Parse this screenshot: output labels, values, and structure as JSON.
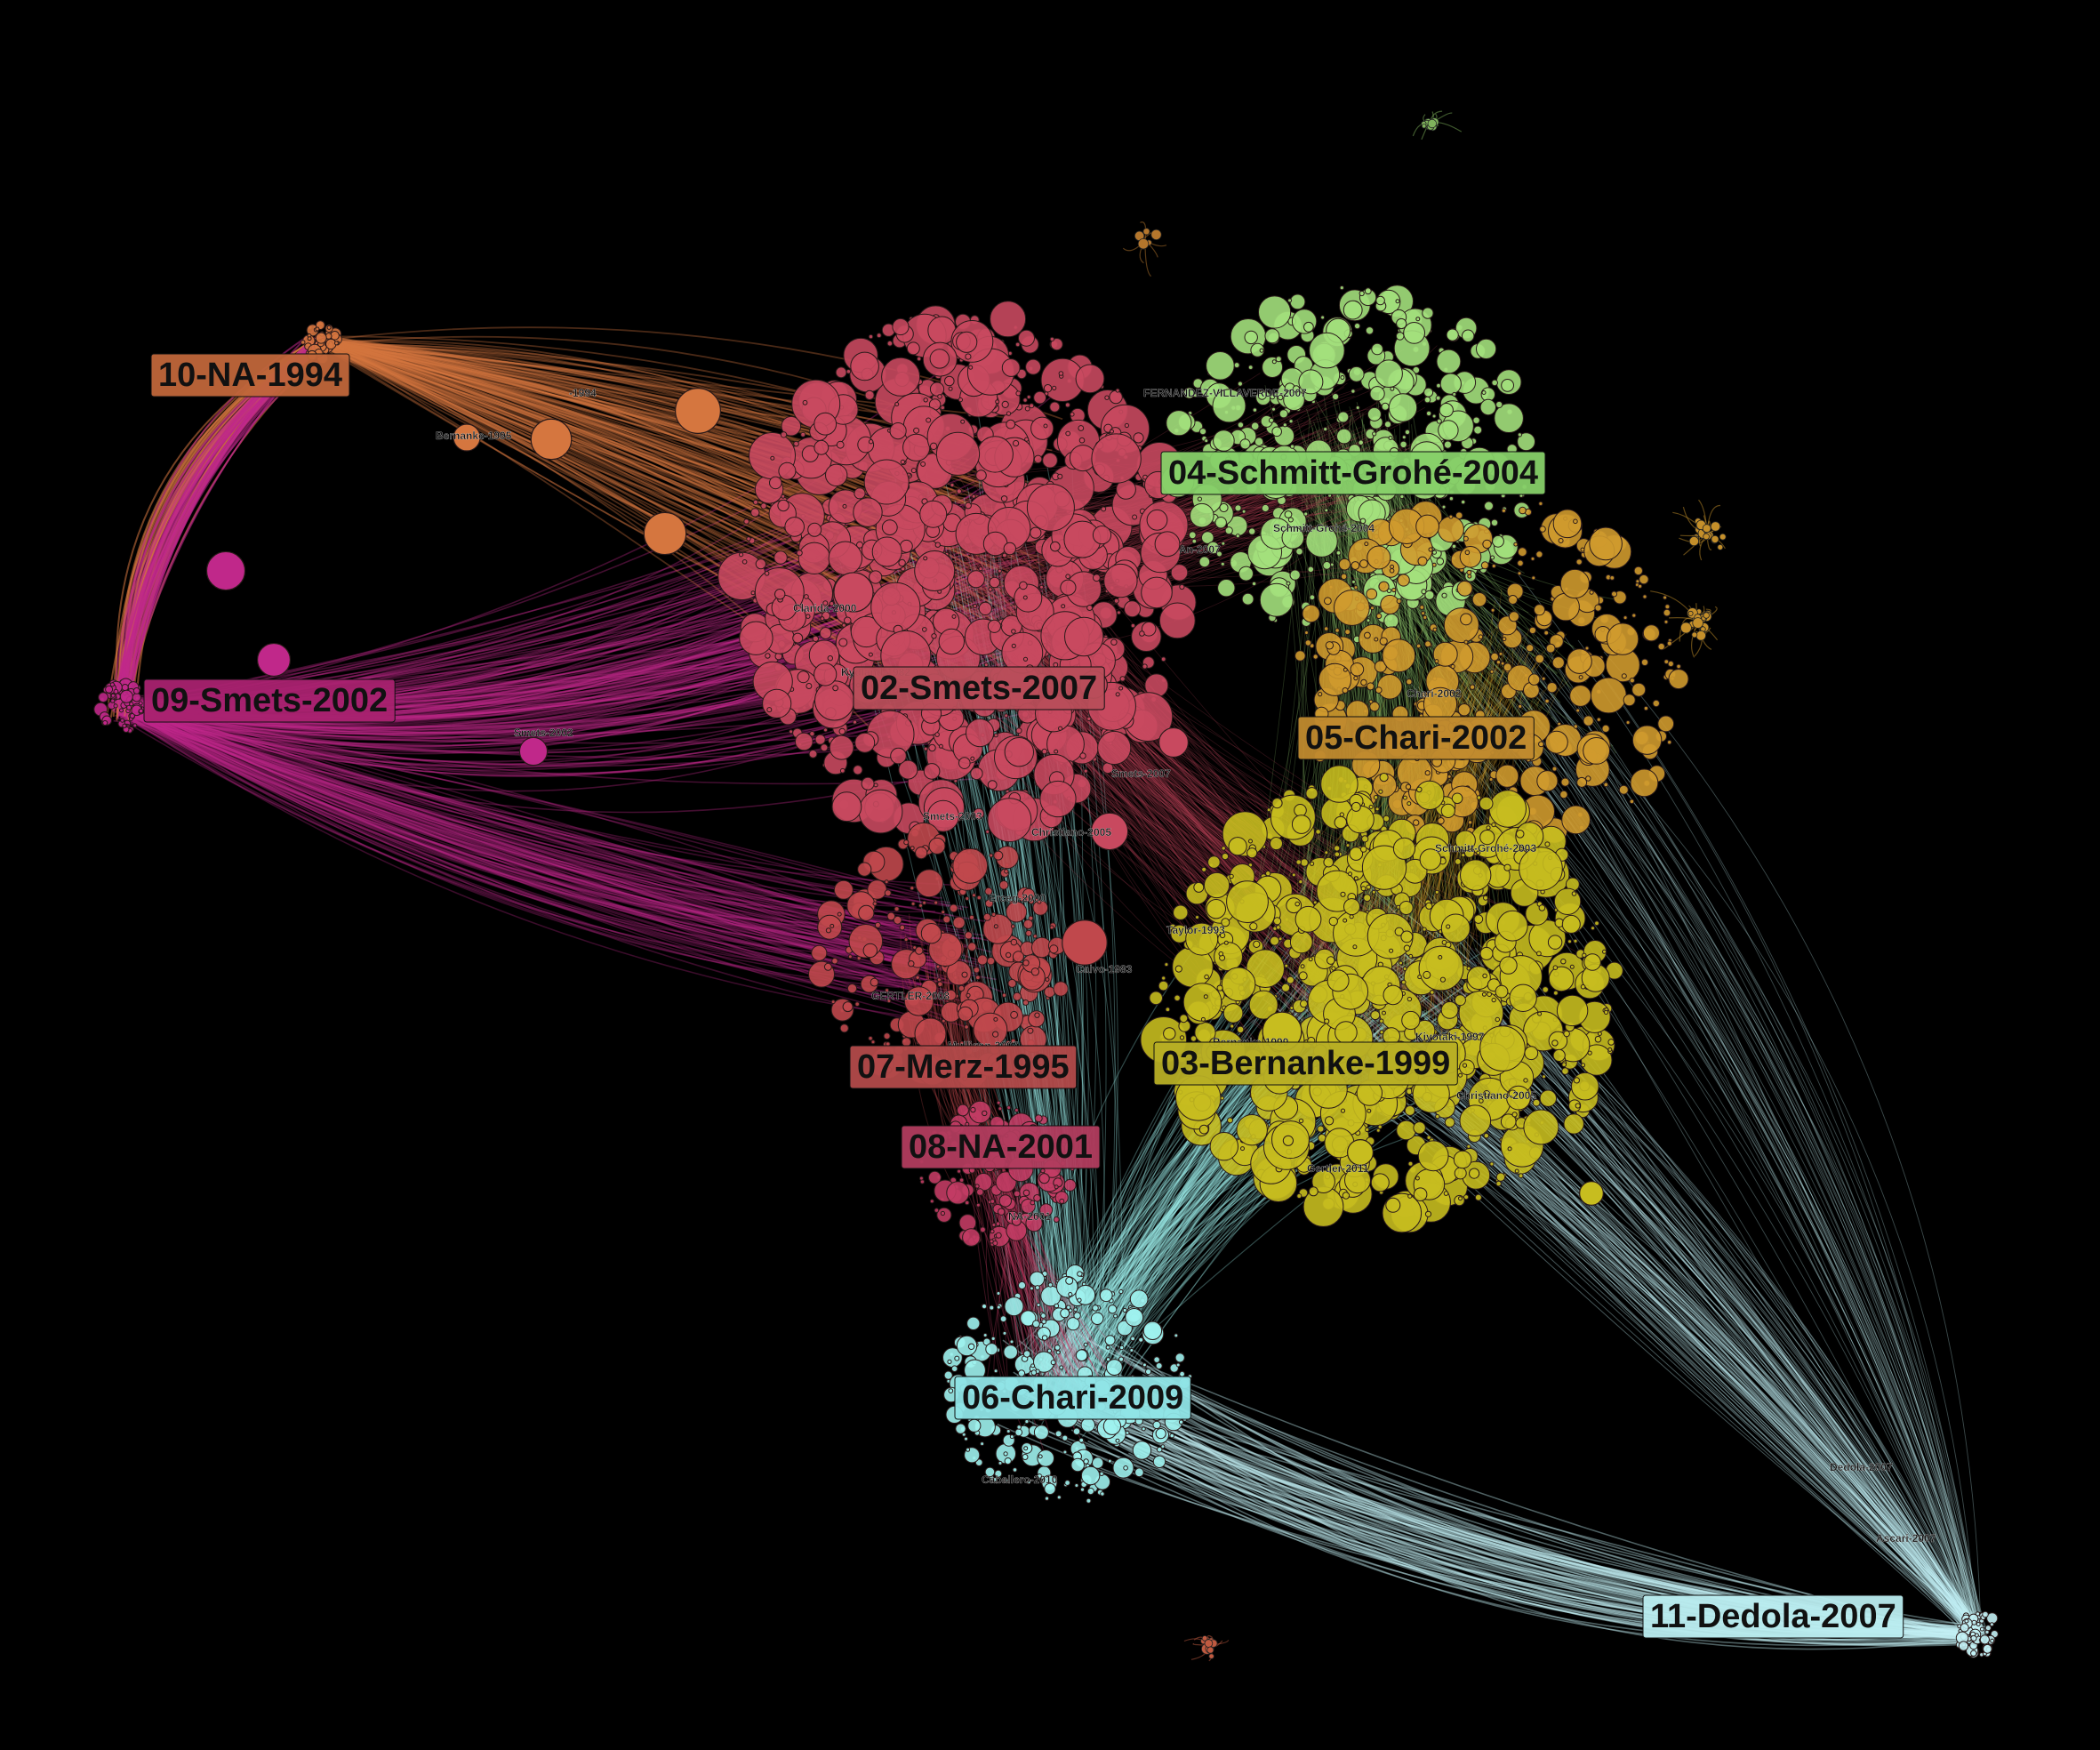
{
  "clusters": [
    {
      "id": "c02",
      "label": "02-Smets-2007",
      "color": "#c8495f",
      "box_color": "#b84e5a"
    },
    {
      "id": "c03",
      "label": "03-Bernanke-1999",
      "color": "#c7bd1f",
      "box_color": "#b7ae25"
    },
    {
      "id": "c04",
      "label": "04-Schmitt-Grohé-2004",
      "color": "#a3e07c",
      "box_color": "#86cf68"
    },
    {
      "id": "c05",
      "label": "05-Chari-2002",
      "color": "#cf9a2d",
      "box_color": "#c08a2e"
    },
    {
      "id": "c06",
      "label": "06-Chari-2009",
      "color": "#9ef2ee",
      "box_color": "#8fe4e6"
    },
    {
      "id": "c07",
      "label": "07-Merz-1995",
      "color": "#c0484c",
      "box_color": "#b24a4a"
    },
    {
      "id": "c08",
      "label": "08-NA-2001",
      "color": "#c23c64",
      "box_color": "#b13c5e"
    },
    {
      "id": "c09",
      "label": "09-Smets-2002",
      "color": "#c0288a",
      "box_color": "#a8226f"
    },
    {
      "id": "c10",
      "label": "10-NA-1994",
      "color": "#d5763f",
      "box_color": "#c0663a"
    },
    {
      "id": "c11",
      "label": "11-Dedola-2007",
      "color": "#c3f1f5",
      "box_color": "#b9ecef"
    }
  ],
  "node_labels": [
    {
      "text": "FERNANDEZ-VILLAVERDE-2007"
    },
    {
      "text": "An-2007"
    },
    {
      "text": "Schmitt-Grohé-2004"
    },
    {
      "text": "Clarida-2000"
    },
    {
      "text": "Kydland-1982"
    },
    {
      "text": "Chari-2002"
    },
    {
      "text": "Smets-2007"
    },
    {
      "text": "Smets-2003"
    },
    {
      "text": "Christiano-2005"
    },
    {
      "text": "Schmitt-Grohé-2003"
    },
    {
      "text": "Erceg-2000"
    },
    {
      "text": "Taylor-1993"
    },
    {
      "text": "Calvo-1983"
    },
    {
      "text": "GERTLER-2008"
    },
    {
      "text": "Bernanke-1999"
    },
    {
      "text": "Kiyotaki-1997"
    },
    {
      "text": "Mulligan-2007"
    },
    {
      "text": "Christiano-2005"
    },
    {
      "text": "Gertler-2011"
    },
    {
      "text": "NA-2001"
    },
    {
      "text": "Caballero-2010"
    },
    {
      "text": "Dedola-2007"
    },
    {
      "text": "Ascari-2007"
    },
    {
      "text": "-1994"
    },
    {
      "text": "Bernanke-1995"
    },
    {
      "text": "Smets-2002"
    }
  ]
}
